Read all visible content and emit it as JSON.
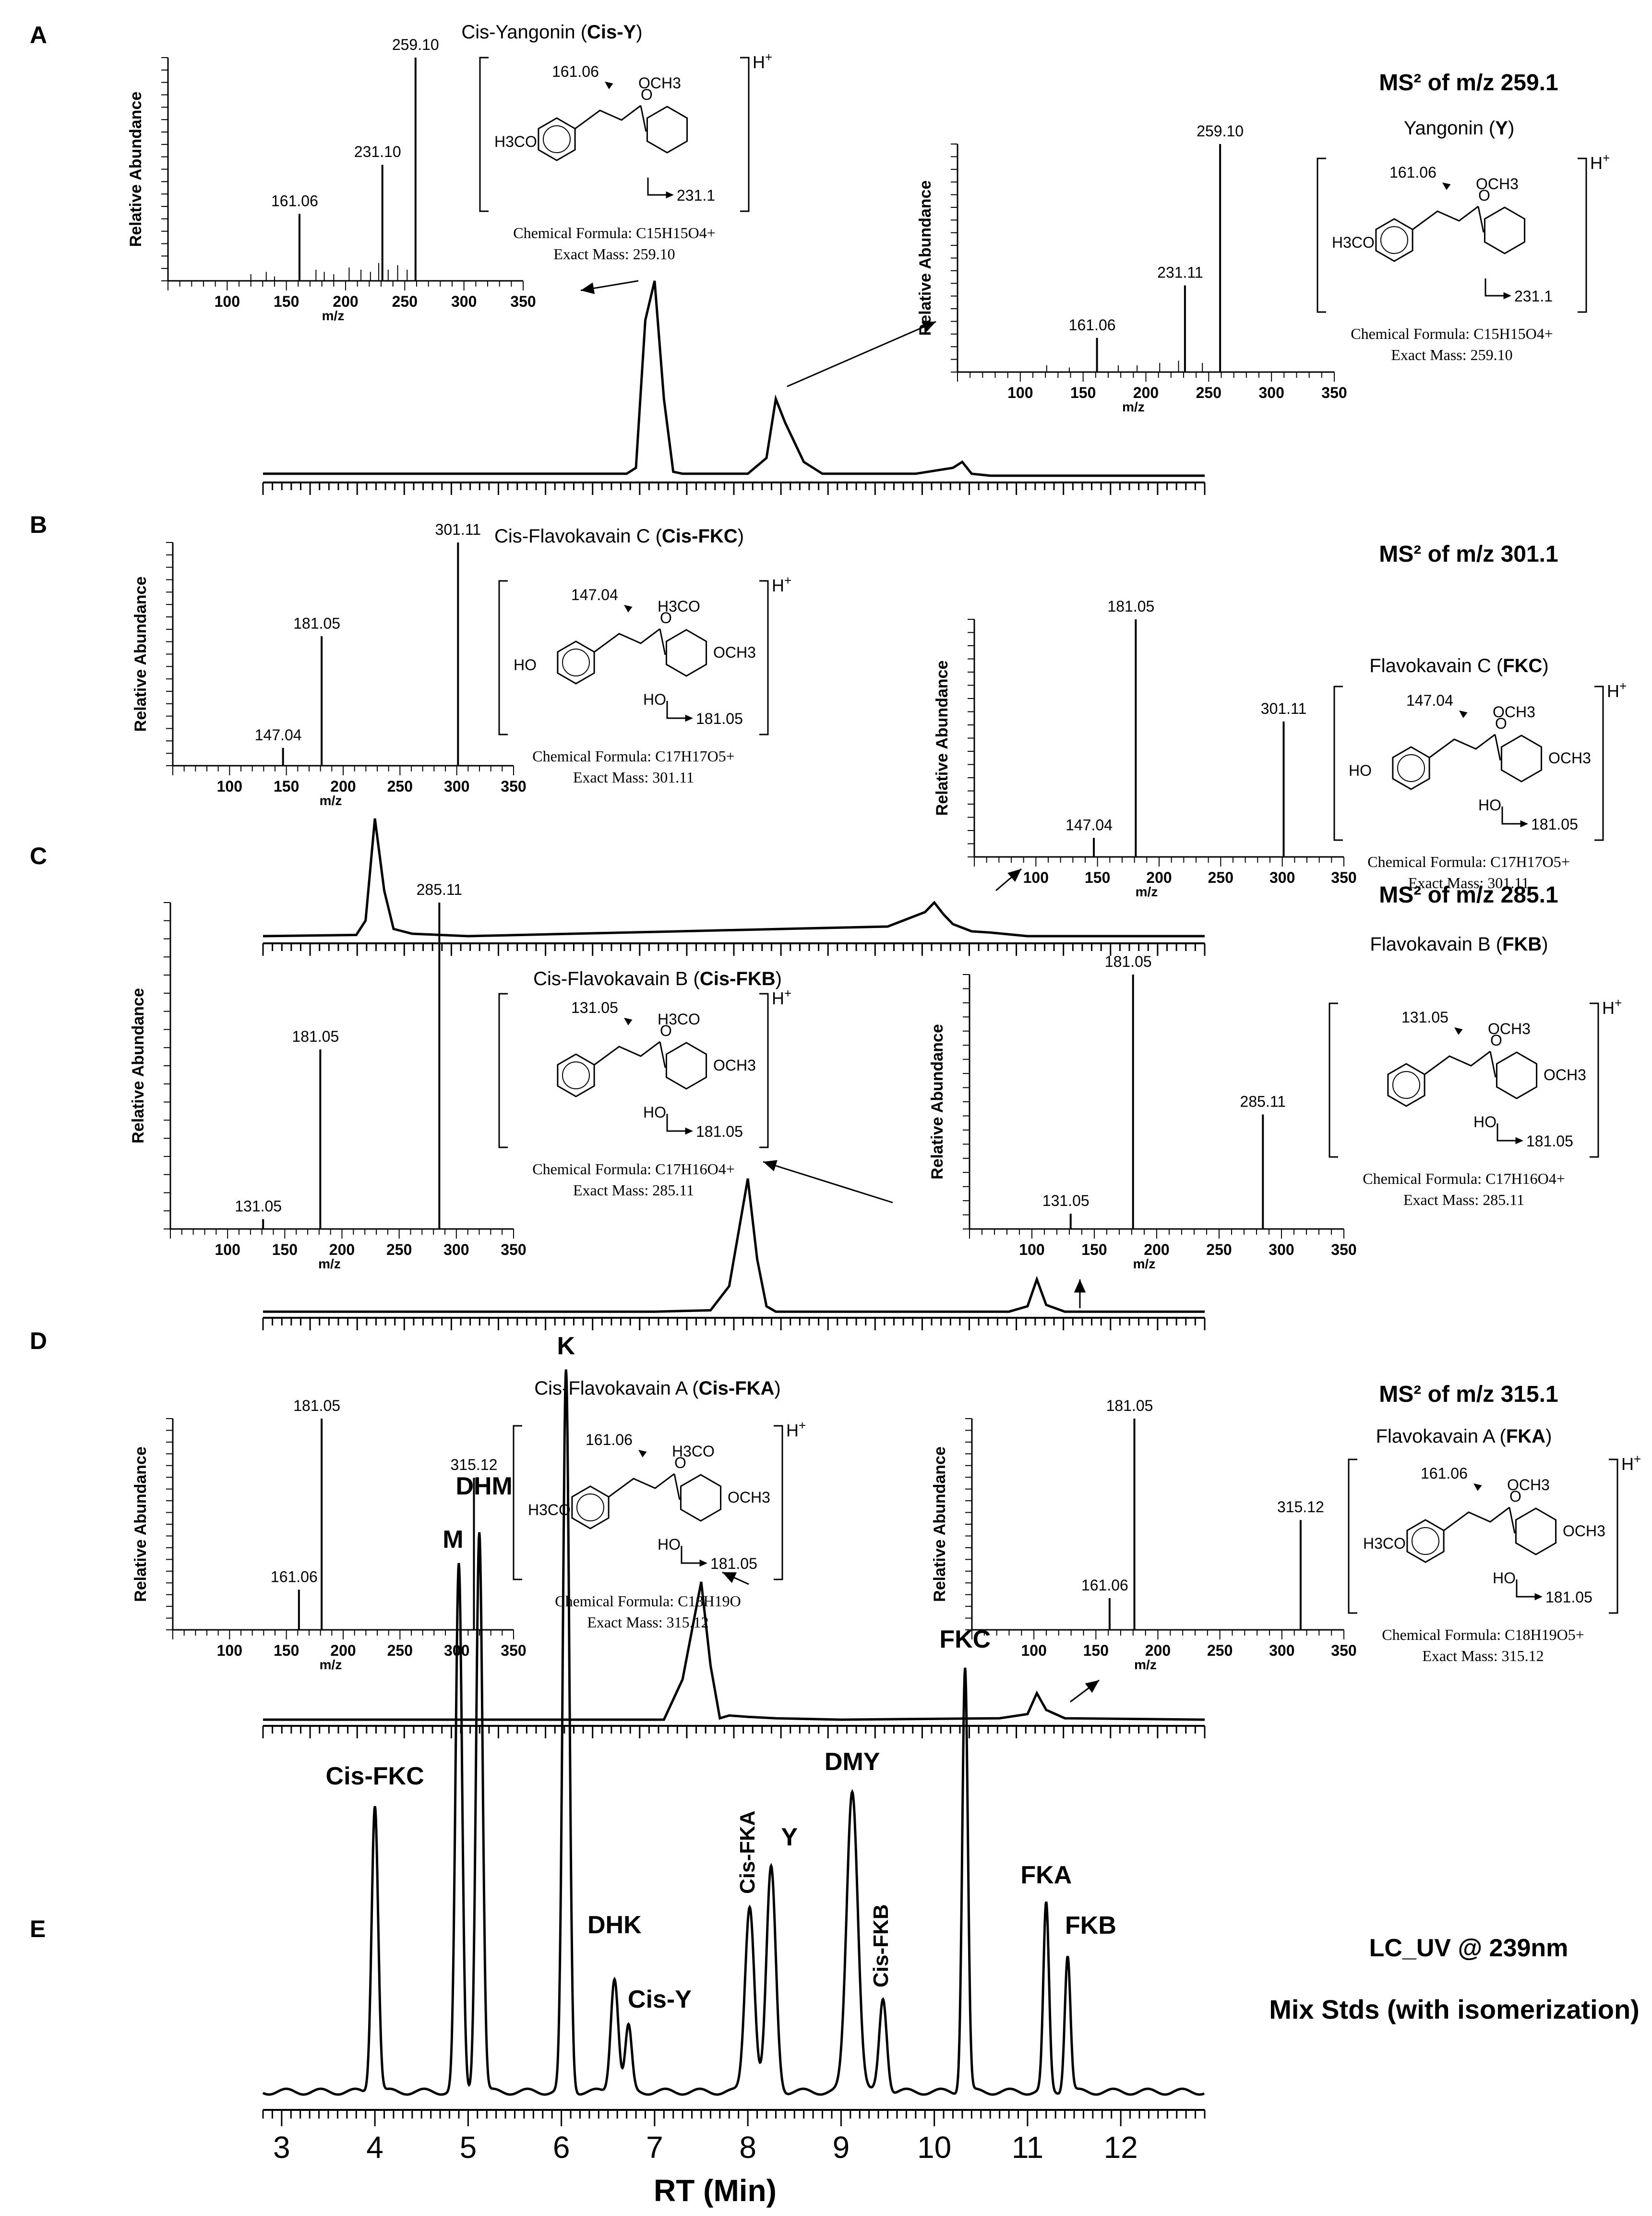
{
  "panels": [
    {
      "letter": "A",
      "heading": "MS² of m/z 259.1",
      "left_ms": {
        "ylabel": "Relative Abundance",
        "xlabel": "m/z",
        "ticks": [
          100,
          150,
          200,
          250,
          300,
          350
        ],
        "peaks": [
          [
            161.06,
            0.3
          ],
          [
            231.1,
            0.52
          ],
          [
            259.1,
            1.0
          ]
        ],
        "labels": [
          "161.06",
          "231.10",
          "259.10"
        ],
        "minor_peaks": [
          [
            120,
            0.03
          ],
          [
            133,
            0.04
          ],
          [
            140,
            0.02
          ],
          [
            175,
            0.05
          ],
          [
            182,
            0.04
          ],
          [
            190,
            0.03
          ],
          [
            203,
            0.06
          ],
          [
            213,
            0.05
          ],
          [
            221,
            0.04
          ],
          [
            228,
            0.08
          ],
          [
            236,
            0.05
          ],
          [
            244,
            0.07
          ],
          [
            252,
            0.05
          ]
        ]
      },
      "left_struct": {
        "name": "Cis-Yangonin",
        "abbr": "Cis-Y",
        "formula": "Chemical Formula: C15H15O4+",
        "mass": "Exact Mass: 259.10",
        "groups": [
          "H3CO",
          "OCH3"
        ],
        "frags": [
          "161.06",
          "231.1"
        ]
      },
      "right_ms": {
        "ylabel": "Relative Abundance",
        "xlabel": "m/z",
        "ticks": [
          100,
          150,
          200,
          250,
          300,
          350
        ],
        "peaks": [
          [
            161.06,
            0.15
          ],
          [
            231.11,
            0.38
          ],
          [
            259.1,
            1.0
          ]
        ],
        "labels": [
          "161.06",
          "231.11",
          "259.10"
        ],
        "minor_peaks": [
          [
            121,
            0.03
          ],
          [
            139,
            0.02
          ],
          [
            178,
            0.03
          ],
          [
            193,
            0.03
          ],
          [
            211,
            0.04
          ],
          [
            226,
            0.05
          ],
          [
            245,
            0.04
          ]
        ]
      },
      "right_struct": {
        "name": "Yangonin",
        "abbr": "Y",
        "formula": "Chemical Formula: C15H15O4+",
        "mass": "Exact Mass: 259.10",
        "groups": [
          "H3CO",
          "OCH3"
        ],
        "frags": [
          "161.06",
          "231.1"
        ]
      }
    },
    {
      "letter": "B",
      "heading": "MS² of m/z 301.1",
      "left_ms": {
        "ylabel": "Relative Abundance",
        "xlabel": "m/z",
        "ticks": [
          100,
          150,
          200,
          250,
          300,
          350
        ],
        "peaks": [
          [
            147.04,
            0.08
          ],
          [
            181.05,
            0.58
          ],
          [
            301.11,
            1.0
          ]
        ],
        "labels": [
          "147.04",
          "181.05",
          "301.11"
        ],
        "minor_peaks": []
      },
      "left_struct": {
        "name": "Cis-Flavokavain C",
        "abbr": "Cis-FKC",
        "formula": "Chemical Formula: C17H17O5+",
        "mass": "Exact Mass: 301.11",
        "groups": [
          "HO",
          "H3CO",
          "OCH3",
          "HO"
        ],
        "frags": [
          "147.04",
          "181.05"
        ]
      },
      "right_ms": {
        "ylabel": "Relative Abundance",
        "xlabel": "m/z",
        "ticks": [
          100,
          150,
          200,
          250,
          300,
          350
        ],
        "peaks": [
          [
            147.04,
            0.08
          ],
          [
            181.05,
            1.0
          ],
          [
            301.11,
            0.57
          ]
        ],
        "labels": [
          "147.04",
          "181.05",
          "301.11"
        ],
        "minor_peaks": []
      },
      "right_struct": {
        "name": "Flavokavain C",
        "abbr": "FKC",
        "formula": "Chemical Formula: C17H17O5+",
        "mass": "Exact Mass: 301.11",
        "groups": [
          "HO",
          "OCH3",
          "OCH3",
          "HO"
        ],
        "frags": [
          "147.04",
          "181.05"
        ]
      }
    },
    {
      "letter": "C",
      "heading": "MS² of m/z 285.1",
      "left_ms": {
        "ylabel": "Relative Abundance",
        "xlabel": "m/z",
        "ticks": [
          100,
          150,
          200,
          250,
          300,
          350
        ],
        "peaks": [
          [
            131.05,
            0.03
          ],
          [
            181.05,
            0.55
          ],
          [
            285.11,
            1.0
          ]
        ],
        "labels": [
          "131.05",
          "181.05",
          "285.11"
        ],
        "minor_peaks": []
      },
      "left_struct": {
        "name": "Cis-Flavokavain B",
        "abbr": "Cis-FKB",
        "formula": "Chemical Formula: C17H16O4+",
        "mass": "Exact Mass: 285.11",
        "groups": [
          "",
          "H3CO",
          "OCH3",
          "HO"
        ],
        "frags": [
          "131.05",
          "181.05"
        ]
      },
      "right_ms": {
        "ylabel": "Relative Abundance",
        "xlabel": "m/z",
        "ticks": [
          100,
          150,
          200,
          250,
          300,
          350
        ],
        "peaks": [
          [
            131.05,
            0.06
          ],
          [
            181.05,
            1.0
          ],
          [
            285.11,
            0.45
          ]
        ],
        "labels": [
          "131.05",
          "181.05",
          "285.11"
        ],
        "minor_peaks": []
      },
      "right_struct": {
        "name": "Flavokavain B",
        "abbr": "FKB",
        "formula": "Chemical Formula: C17H16O4+",
        "mass": "Exact Mass: 285.11",
        "groups": [
          "",
          "OCH3",
          "OCH3",
          "HO"
        ],
        "frags": [
          "131.05",
          "181.05"
        ]
      }
    },
    {
      "letter": "D",
      "heading": "MS² of m/z 315.1",
      "left_ms": {
        "ylabel": "Relative Abundance",
        "xlabel": "m/z",
        "ticks": [
          100,
          150,
          200,
          250,
          300,
          350
        ],
        "peaks": [
          [
            161.06,
            0.19
          ],
          [
            181.05,
            1.0
          ],
          [
            315.12,
            0.72
          ]
        ],
        "labels": [
          "161.06",
          "181.05",
          "315.12"
        ],
        "minor_peaks": []
      },
      "left_struct": {
        "name": "Cis-Flavokavain A",
        "abbr": "Cis-FKA",
        "formula": "Chemical Formula: C18H19O",
        "mass": "Exact Mass: 315.12",
        "groups": [
          "H3CO",
          "H3CO",
          "OCH3",
          "HO"
        ],
        "frags": [
          "161.06",
          "181.05"
        ]
      },
      "right_ms": {
        "ylabel": "Relative Abundance",
        "xlabel": "m/z",
        "ticks": [
          100,
          150,
          200,
          250,
          300,
          350
        ],
        "peaks": [
          [
            161.06,
            0.15
          ],
          [
            181.05,
            1.0
          ],
          [
            315.12,
            0.52
          ]
        ],
        "labels": [
          "161.06",
          "181.05",
          "315.12"
        ],
        "minor_peaks": []
      },
      "right_struct": {
        "name": "Flavokavain A",
        "abbr": "FKA",
        "formula": "Chemical Formula: C18H19O5+",
        "mass": "Exact Mass: 315.12",
        "groups": [
          "H3CO",
          "OCH3",
          "OCH3",
          "HO"
        ],
        "frags": [
          "161.06",
          "181.05"
        ]
      }
    }
  ],
  "panel_e": {
    "letter": "E",
    "note1": "LC_UV @ 239nm",
    "note2": "Mix Stds (with isomerization)",
    "xlabel": "RT (Min)"
  },
  "chart_data": [
    {
      "type": "line",
      "panel": "A",
      "x": [
        2.8,
        6.7,
        6.8,
        6.9,
        7.0,
        7.1,
        7.2,
        7.3,
        7.4,
        8.0,
        8.2,
        8.3,
        8.4,
        8.6,
        8.8,
        9.8,
        10.2,
        10.3,
        10.4,
        10.6,
        12.9
      ],
      "y": [
        0.02,
        0.02,
        0.05,
        0.8,
        1.0,
        0.4,
        0.03,
        0.02,
        0.02,
        0.02,
        0.1,
        0.4,
        0.28,
        0.08,
        0.02,
        0.02,
        0.05,
        0.08,
        0.02,
        0.01,
        0.01
      ]
    },
    {
      "type": "line",
      "panel": "B",
      "x": [
        2.8,
        3.8,
        3.9,
        4.0,
        4.1,
        4.2,
        4.4,
        5.0,
        9.5,
        9.9,
        10.0,
        10.1,
        10.2,
        10.4,
        10.6,
        11.0,
        12.9
      ],
      "y": [
        0.02,
        0.03,
        0.15,
        1.0,
        0.4,
        0.08,
        0.04,
        0.02,
        0.1,
        0.22,
        0.3,
        0.2,
        0.12,
        0.06,
        0.05,
        0.02,
        0.02
      ]
    },
    {
      "type": "line",
      "panel": "C",
      "x": [
        2.8,
        7.0,
        7.6,
        7.8,
        7.9,
        8.0,
        8.1,
        8.2,
        8.3,
        10.8,
        11.0,
        11.1,
        11.2,
        11.4,
        12.9
      ],
      "y": [
        0.01,
        0.01,
        0.02,
        0.2,
        0.6,
        1.0,
        0.4,
        0.05,
        0.01,
        0.01,
        0.05,
        0.25,
        0.06,
        0.01,
        0.01
      ]
    },
    {
      "type": "line",
      "panel": "D",
      "x": [
        2.8,
        7.1,
        7.3,
        7.5,
        7.6,
        7.7,
        7.8,
        8.0,
        8.3,
        9.0,
        10.7,
        11.0,
        11.1,
        11.2,
        11.4,
        12.9
      ],
      "y": [
        0.01,
        0.01,
        0.3,
        1.0,
        0.4,
        0.02,
        0.04,
        0.03,
        0.02,
        0.01,
        0.02,
        0.05,
        0.2,
        0.08,
        0.02,
        0.01
      ]
    },
    {
      "type": "line",
      "panel": "E",
      "xlabel": "RT (Min)",
      "xlim": [
        2.8,
        12.9
      ],
      "xticks": [
        3,
        4,
        5,
        6,
        7,
        8,
        9,
        10,
        11,
        12
      ],
      "peaks": [
        {
          "rt": 4.0,
          "h": 0.4,
          "w": 0.035,
          "label": "Cis-FKC"
        },
        {
          "rt": 4.9,
          "h": 0.73,
          "w": 0.035,
          "label": "M"
        },
        {
          "rt": 5.12,
          "h": 0.78,
          "w": 0.035,
          "label": "DHM"
        },
        {
          "rt": 6.05,
          "h": 1.0,
          "w": 0.035,
          "label": "K"
        },
        {
          "rt": 6.57,
          "h": 0.16,
          "w": 0.04,
          "label": "DHK"
        },
        {
          "rt": 6.72,
          "h": 0.09,
          "w": 0.035,
          "label": "Cis-Y"
        },
        {
          "rt": 8.02,
          "h": 0.26,
          "w": 0.05,
          "label": "Cis-FKA"
        },
        {
          "rt": 8.25,
          "h": 0.31,
          "w": 0.05,
          "label": "Y"
        },
        {
          "rt": 9.12,
          "h": 0.42,
          "w": 0.06,
          "label": "DMY"
        },
        {
          "rt": 9.45,
          "h": 0.13,
          "w": 0.04,
          "label": "Cis-FKB"
        },
        {
          "rt": 10.33,
          "h": 0.59,
          "w": 0.03,
          "label": "FKC"
        },
        {
          "rt": 11.2,
          "h": 0.26,
          "w": 0.03,
          "label": "FKA"
        },
        {
          "rt": 11.43,
          "h": 0.19,
          "w": 0.03,
          "label": "FKB"
        }
      ]
    }
  ]
}
